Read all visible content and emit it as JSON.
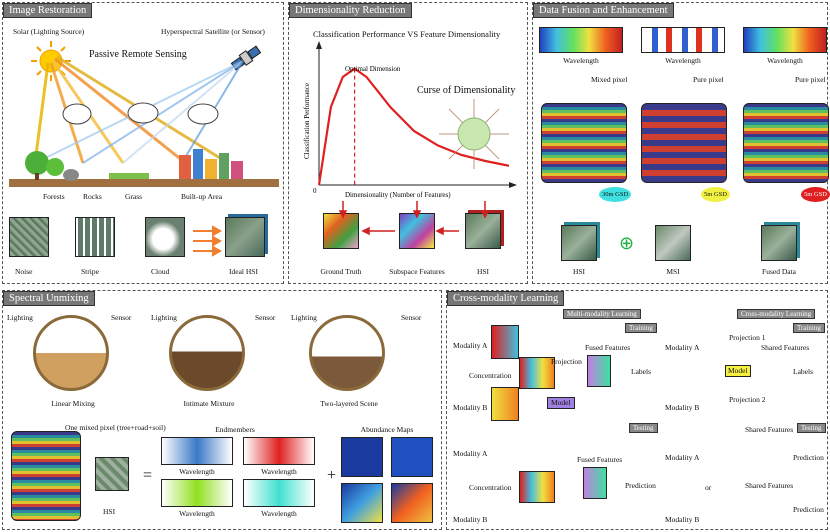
{
  "image_restoration": {
    "title": "Image Restoration",
    "sun_label": "Solar (Lighting Source)",
    "satellite_label": "Hyperspectral Satellite (or Sensor)",
    "heading": "Passive Remote Sensing",
    "land_labels": [
      "Forests",
      "Rocks",
      "Grass",
      "Built-up Area"
    ],
    "degradations": [
      "Noise",
      "Stripe",
      "Cloud",
      "Ideal HSI"
    ]
  },
  "dimensionality_reduction": {
    "title": "Dimensionality Reduction",
    "chart_title": "Classification Performance VS Feature Dimensionality",
    "ylabel": "Classification Performance",
    "xlabel": "Dimensionality (Number of Features)",
    "origin": "0",
    "optimal_label": "Optimal Dimension",
    "curse_label": "Curse of Dimensionality",
    "outputs": [
      "Ground Truth",
      "Subspace Features",
      "HSI"
    ]
  },
  "chart_data": {
    "type": "line",
    "title": "Classification Performance VS Feature Dimensionality",
    "xlabel": "Dimensionality (Number of Features)",
    "ylabel": "Classification Performance",
    "x": [
      0,
      0.5,
      1,
      1.5,
      2,
      3,
      4,
      5,
      6,
      7,
      8
    ],
    "values": [
      0.0,
      0.65,
      0.9,
      0.97,
      0.9,
      0.65,
      0.45,
      0.33,
      0.25,
      0.2,
      0.16
    ],
    "optimal_x": 1.5,
    "grid": false
  },
  "data_fusion": {
    "title": "Data Fusion and Enhancement",
    "spectra_label": "Wavelength",
    "pixel_labels": [
      "Mixed pixel",
      "Pure pixel",
      "Pure pixel"
    ],
    "gsd": [
      "30m GSD",
      "5m GSD",
      "5m GSD"
    ],
    "bottom_labels": [
      "HSI",
      "MSI",
      "Fused Data"
    ],
    "plus_symbol": "⊕"
  },
  "spectral_unmixing": {
    "title": "Spectral Unmixing",
    "lighting": "Lighting",
    "sensor": "Sensor",
    "scenes": [
      "Linear Mixing",
      "Intimate Mixture",
      "Two-layered Scene"
    ],
    "mixed_pixel": "One mixed pixel (tree+road+soil)",
    "hsi": "HSI",
    "equals": "=",
    "plus": "+",
    "endmembers": "Endmembers",
    "abundance": "Abundance Maps",
    "wavelength": "Wavelength"
  },
  "cross_modality": {
    "title": "Cross-modality Learning",
    "multi_title": "Multi-modality Learning",
    "cross_title": "Cross-modality Learning",
    "training": "Training",
    "testing": "Testing",
    "modality_a": "Modality A",
    "modality_b": "Modality B",
    "concentration": "Concentration",
    "projection": "Projection",
    "projection1": "Projection 1",
    "projection2": "Projection 2",
    "fused_features": "Fused Features",
    "shared_features": "Shared Features",
    "model": "Model",
    "labels": "Labels",
    "prediction": "Prediction",
    "or": "or"
  }
}
